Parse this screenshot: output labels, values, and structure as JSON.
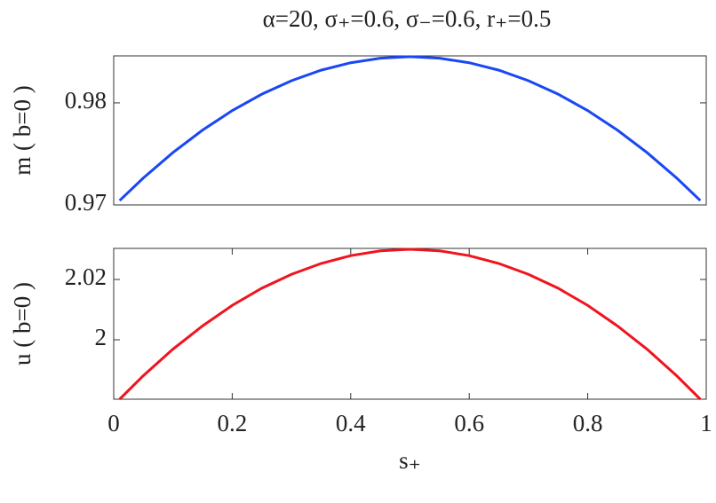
{
  "title": "α=20, σ₊=0.6, σ₋=0.6, r₊=0.5",
  "chart_data": [
    {
      "type": "line",
      "ylabel": "m ( b=0 )",
      "xlim": [
        0,
        1
      ],
      "ylim": [
        0.97,
        0.9846
      ],
      "yticks": [
        0.97,
        0.98
      ],
      "x": [
        0.01,
        0.05,
        0.1,
        0.15,
        0.2,
        0.25,
        0.3,
        0.35,
        0.4,
        0.45,
        0.5,
        0.55,
        0.6,
        0.65,
        0.7,
        0.75,
        0.8,
        0.85,
        0.9,
        0.95,
        0.99
      ],
      "series": [
        {
          "color": "#1a47f5",
          "values": [
            0.97043,
            0.97264,
            0.97513,
            0.97733,
            0.97924,
            0.98085,
            0.98217,
            0.9832,
            0.98393,
            0.98437,
            0.98452,
            0.98437,
            0.98393,
            0.9832,
            0.98217,
            0.98085,
            0.97924,
            0.97733,
            0.97513,
            0.97264,
            0.97043
          ]
        }
      ]
    },
    {
      "type": "line",
      "ylabel": "u ( b=0 )",
      "xlabel": "s₊",
      "xlim": [
        0,
        1
      ],
      "ylim": [
        1.9803,
        2.0303
      ],
      "yticks": [
        2,
        2.02
      ],
      "xticks": [
        0,
        0.2,
        0.4,
        0.6,
        0.8,
        1
      ],
      "x": [
        0.01,
        0.05,
        0.1,
        0.15,
        0.2,
        0.25,
        0.3,
        0.35,
        0.4,
        0.45,
        0.5,
        0.55,
        0.6,
        0.65,
        0.7,
        0.75,
        0.8,
        0.85,
        0.9,
        0.95,
        0.99
      ],
      "series": [
        {
          "color": "#f0141e",
          "values": [
            1.9803,
            1.9881,
            1.9969,
            2.0046,
            2.0114,
            2.0171,
            2.0217,
            2.0253,
            2.0279,
            2.0295,
            2.03,
            2.0295,
            2.0279,
            2.0253,
            2.0217,
            2.0171,
            2.0114,
            2.0046,
            1.9969,
            1.9881,
            1.9803
          ]
        }
      ]
    }
  ]
}
